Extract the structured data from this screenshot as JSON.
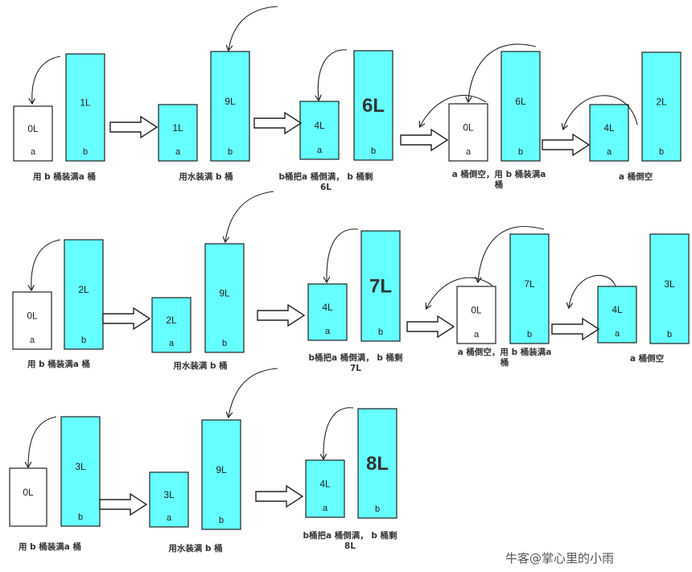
{
  "colors": {
    "full": "#66ffff",
    "empty": "#ffffff",
    "stroke": "#222222"
  },
  "watermark": "牛客@掌心里的小雨",
  "rows": [
    {
      "steps": [
        {
          "caption": [
            "用 b 桶装满a 桶"
          ],
          "buckets": [
            {
              "vol": "0L",
              "name": "a",
              "filled": false
            },
            {
              "vol": "1L",
              "name": "b",
              "filled": true
            }
          ]
        },
        {
          "caption": [
            "用水装满 b 桶"
          ],
          "buckets": [
            {
              "vol": "1L",
              "name": "a",
              "filled": true
            },
            {
              "vol": "9L",
              "name": "b",
              "filled": true
            }
          ]
        },
        {
          "caption": [
            "b桶把a 桶倒满， b 桶剩",
            "6L"
          ],
          "buckets": [
            {
              "vol": "4L",
              "name": "a",
              "filled": true
            },
            {
              "vol": "6L",
              "name": "b",
              "filled": true,
              "big": true
            }
          ]
        },
        {
          "caption": [
            "a 桶倒空，用 b 桶装满a",
            "桶"
          ],
          "buckets": [
            {
              "vol": "0L",
              "name": "a",
              "filled": false
            },
            {
              "vol": "6L",
              "name": "b",
              "filled": true
            }
          ]
        },
        {
          "caption": [
            "a 桶倒空"
          ],
          "buckets": [
            {
              "vol": "4L",
              "name": "a",
              "filled": true
            },
            {
              "vol": "2L",
              "name": "b",
              "filled": true
            }
          ]
        }
      ]
    },
    {
      "steps": [
        {
          "caption": [
            "用 b 桶装满a 桶"
          ],
          "buckets": [
            {
              "vol": "0L",
              "name": "a",
              "filled": false
            },
            {
              "vol": "2L",
              "name": "b",
              "filled": true
            }
          ]
        },
        {
          "caption": [
            "用水装满 b 桶"
          ],
          "buckets": [
            {
              "vol": "2L",
              "name": "a",
              "filled": true
            },
            {
              "vol": "9L",
              "name": "b",
              "filled": true
            }
          ]
        },
        {
          "caption": [
            "b桶把a 桶倒满， b 桶剩",
            "7L"
          ],
          "buckets": [
            {
              "vol": "4L",
              "name": "a",
              "filled": true
            },
            {
              "vol": "7L",
              "name": "b",
              "filled": true,
              "big": true
            }
          ]
        },
        {
          "caption": [
            "a 桶倒空，用 b 桶装满a",
            "桶"
          ],
          "buckets": [
            {
              "vol": "0L",
              "name": "a",
              "filled": false
            },
            {
              "vol": "7L",
              "name": "b",
              "filled": true
            }
          ]
        },
        {
          "caption": [
            "a 桶倒空"
          ],
          "buckets": [
            {
              "vol": "4L",
              "name": "a",
              "filled": true
            },
            {
              "vol": "3L",
              "name": "b",
              "filled": true
            }
          ]
        }
      ]
    },
    {
      "steps": [
        {
          "caption": [
            "用 b 桶装满a 桶"
          ],
          "buckets": [
            {
              "vol": "0L",
              "name": "",
              "filled": false
            },
            {
              "vol": "3L",
              "name": "b",
              "filled": true
            }
          ]
        },
        {
          "caption": [
            "用水装满 b 桶"
          ],
          "buckets": [
            {
              "vol": "3L",
              "name": "a",
              "filled": true
            },
            {
              "vol": "9L",
              "name": "b",
              "filled": true
            }
          ]
        },
        {
          "caption": [
            "b桶把a 桶倒满， b 桶剩",
            "8L"
          ],
          "buckets": [
            {
              "vol": "4L",
              "name": "a",
              "filled": true
            },
            {
              "vol": "8L",
              "name": "b",
              "filled": true,
              "big": true
            }
          ]
        }
      ]
    }
  ]
}
